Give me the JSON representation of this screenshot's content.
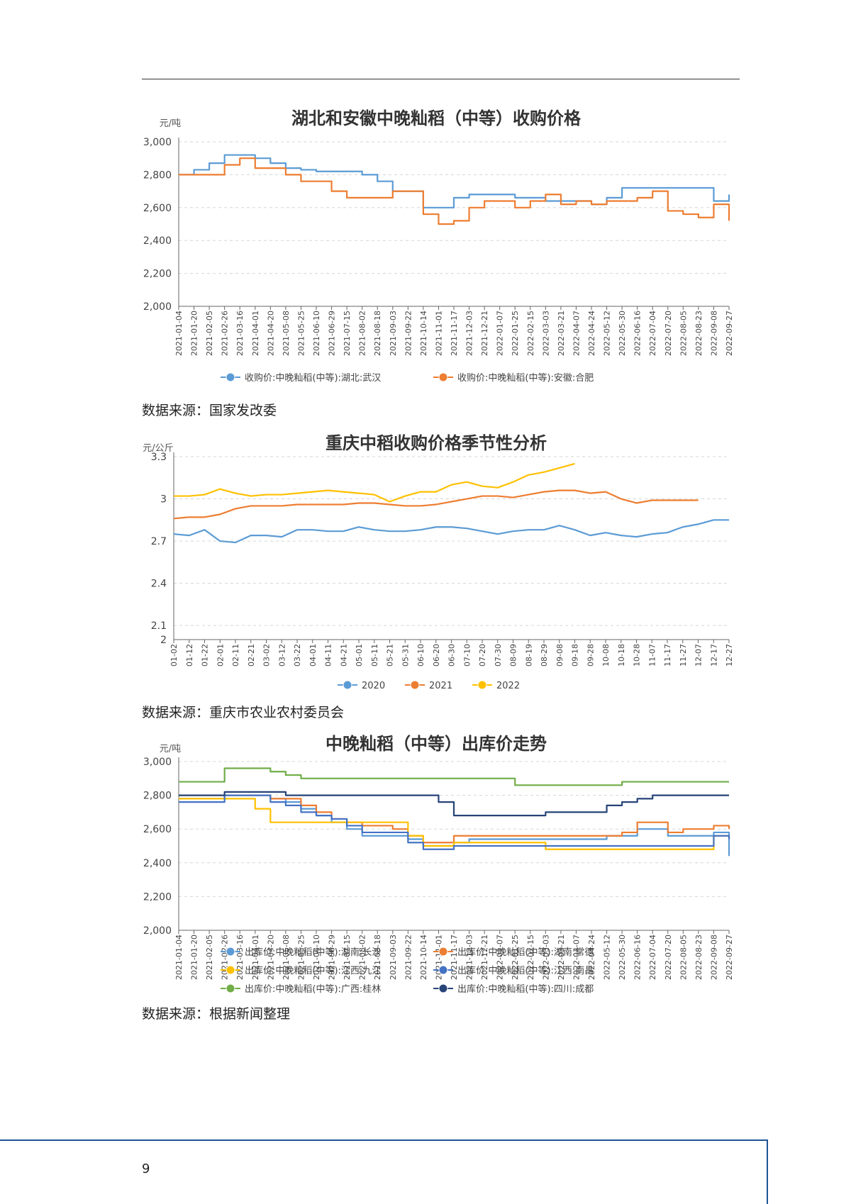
{
  "page_number": "9",
  "sources": [
    "数据来源：国家发改委",
    "数据来源：重庆市农业农村委员会",
    "数据来源：根据新闻整理"
  ],
  "chart_data": [
    {
      "type": "line",
      "title": "湖北和安徽中晚籼稻（中等）收购价格",
      "ylabel": "元/吨",
      "ylim": [
        2000,
        3000
      ],
      "yticks": [
        "3,000",
        "2,800",
        "2,600",
        "2,400",
        "2,200",
        "2,000"
      ],
      "ytick_values": [
        3000,
        2800,
        2600,
        2400,
        2200,
        2000
      ],
      "grid": true,
      "legend_position": "bottom",
      "x": [
        "2021-01-04",
        "2021-01-20",
        "2021-02-05",
        "2021-02-26",
        "2021-03-16",
        "2021-04-01",
        "2021-04-20",
        "2021-05-08",
        "2021-05-25",
        "2021-06-10",
        "2021-06-29",
        "2021-07-15",
        "2021-08-02",
        "2021-08-18",
        "2021-09-03",
        "2021-09-22",
        "2021-10-14",
        "2021-11-01",
        "2021-11-17",
        "2021-12-03",
        "2021-12-21",
        "2022-01-07",
        "2022-01-25",
        "2022-02-15",
        "2022-03-03",
        "2022-03-21",
        "2022-04-07",
        "2022-04-24",
        "2022-05-12",
        "2022-05-30",
        "2022-06-16",
        "2022-07-04",
        "2022-07-20",
        "2022-08-05",
        "2022-08-23",
        "2022-09-08",
        "2022-09-27"
      ],
      "series": [
        {
          "name": "收购价:中晚籼稻(中等):湖北:武汉",
          "color": "#5b9bd5",
          "values": [
            2800,
            2830,
            2870,
            2920,
            2920,
            2900,
            2870,
            2840,
            2830,
            2820,
            2820,
            2820,
            2800,
            2760,
            2700,
            2700,
            2600,
            2600,
            2660,
            2680,
            2680,
            2680,
            2660,
            2660,
            2640,
            2640,
            2640,
            2620,
            2660,
            2720,
            2720,
            2720,
            2720,
            2720,
            2720,
            2640,
            2680
          ]
        },
        {
          "name": "收购价:中晚籼稻(中等):安徽:合肥",
          "color": "#ed7d31",
          "values": [
            2800,
            2800,
            2800,
            2860,
            2900,
            2840,
            2840,
            2800,
            2760,
            2760,
            2700,
            2660,
            2660,
            2660,
            2700,
            2700,
            2560,
            2500,
            2520,
            2600,
            2640,
            2640,
            2600,
            2640,
            2680,
            2620,
            2640,
            2620,
            2640,
            2640,
            2660,
            2700,
            2580,
            2560,
            2540,
            2620,
            2520
          ]
        }
      ]
    },
    {
      "type": "line",
      "title": "重庆中稻收购价格季节性分析",
      "ylabel": "元/公斤",
      "ylim": [
        2,
        3.3
      ],
      "yticks": [
        "3.3",
        "3",
        "2.7",
        "2.4",
        "2.1",
        "2"
      ],
      "ytick_values": [
        3.3,
        3.0,
        2.7,
        2.4,
        2.1,
        2.0
      ],
      "grid": true,
      "legend_position": "bottom",
      "x": [
        "01-02",
        "01-12",
        "01-22",
        "02-01",
        "02-11",
        "02-21",
        "03-02",
        "03-12",
        "03-22",
        "04-01",
        "04-11",
        "04-21",
        "05-01",
        "05-11",
        "05-21",
        "05-31",
        "06-10",
        "06-20",
        "06-30",
        "07-10",
        "07-20",
        "07-30",
        "08-09",
        "08-19",
        "08-29",
        "09-08",
        "09-18",
        "09-28",
        "10-08",
        "10-18",
        "10-28",
        "11-07",
        "11-17",
        "11-27",
        "12-07",
        "12-17",
        "12-27"
      ],
      "series": [
        {
          "name": "2020",
          "color": "#5b9bd5",
          "values": [
            2.75,
            2.74,
            2.78,
            2.7,
            2.69,
            2.74,
            2.74,
            2.73,
            2.78,
            2.78,
            2.77,
            2.77,
            2.8,
            2.78,
            2.77,
            2.77,
            2.78,
            2.8,
            2.8,
            2.79,
            2.77,
            2.75,
            2.77,
            2.78,
            2.78,
            2.81,
            2.78,
            2.74,
            2.76,
            2.74,
            2.73,
            2.75,
            2.76,
            2.8,
            2.82,
            2.85,
            2.85
          ]
        },
        {
          "name": "2021",
          "color": "#ed7d31",
          "values": [
            2.86,
            2.87,
            2.87,
            2.89,
            2.93,
            2.95,
            2.95,
            2.95,
            2.96,
            2.96,
            2.96,
            2.96,
            2.97,
            2.97,
            2.96,
            2.95,
            2.95,
            2.96,
            2.98,
            3.0,
            3.02,
            3.02,
            3.01,
            3.03,
            3.05,
            3.06,
            3.06,
            3.04,
            3.05,
            3.0,
            2.97,
            2.99,
            2.99,
            2.99,
            2.99,
            null,
            null
          ]
        },
        {
          "name": "2022",
          "color": "#ffc000",
          "values": [
            3.02,
            3.02,
            3.03,
            3.07,
            3.04,
            3.02,
            3.03,
            3.03,
            3.04,
            3.05,
            3.06,
            3.05,
            3.04,
            3.03,
            2.98,
            3.02,
            3.05,
            3.05,
            3.1,
            3.12,
            3.09,
            3.08,
            3.12,
            3.17,
            3.19,
            3.22,
            3.25,
            null,
            null,
            null,
            null,
            null,
            null,
            null,
            null,
            null,
            null
          ]
        }
      ]
    },
    {
      "type": "line",
      "title": "中晚籼稻（中等）出库价走势",
      "ylabel": "元/吨",
      "ylim": [
        2000,
        3000
      ],
      "yticks": [
        "3,000",
        "2,800",
        "2,600",
        "2,400",
        "2,200",
        "2,000"
      ],
      "ytick_values": [
        3000,
        2800,
        2600,
        2400,
        2200,
        2000
      ],
      "grid": true,
      "legend_position": "bottom",
      "x": [
        "2021-01-04",
        "2021-01-20",
        "2021-02-05",
        "2021-02-26",
        "2021-03-16",
        "2021-04-01",
        "2021-04-20",
        "2021-05-08",
        "2021-05-25",
        "2021-06-10",
        "2021-06-29",
        "2021-07-15",
        "2021-08-02",
        "2021-08-18",
        "2021-09-03",
        "2021-09-22",
        "2021-10-14",
        "2021-11-01",
        "2021-11-17",
        "2021-12-03",
        "2021-12-21",
        "2022-01-07",
        "2022-01-25",
        "2022-02-15",
        "2022-03-03",
        "2022-03-21",
        "2022-04-07",
        "2022-04-24",
        "2022-05-12",
        "2022-05-30",
        "2022-06-16",
        "2022-07-04",
        "2022-07-20",
        "2022-08-05",
        "2022-08-23",
        "2022-09-08",
        "2022-09-27"
      ],
      "series": [
        {
          "name": "出库价:中晚籼稻(中等):湖南:长沙",
          "color": "#5b9bd5",
          "values": [
            2780,
            2780,
            2780,
            2800,
            2800,
            2800,
            2780,
            2760,
            2720,
            2680,
            2640,
            2600,
            2560,
            2560,
            2560,
            2540,
            2500,
            2500,
            2520,
            2540,
            2540,
            2540,
            2540,
            2540,
            2540,
            2540,
            2540,
            2540,
            2560,
            2560,
            2600,
            2600,
            2560,
            2560,
            2560,
            2580,
            2440
          ]
        },
        {
          "name": "出库价:中晚籼稻(中等):湖南:常德",
          "color": "#ed7d31",
          "values": [
            2800,
            2800,
            2800,
            2800,
            2800,
            2800,
            2780,
            2780,
            2740,
            2700,
            2660,
            2640,
            2620,
            2620,
            2600,
            2560,
            2520,
            2520,
            2560,
            2560,
            2560,
            2560,
            2560,
            2560,
            2560,
            2560,
            2560,
            2560,
            2560,
            2580,
            2640,
            2640,
            2580,
            2600,
            2600,
            2620,
            2600
          ]
        },
        {
          "name": "出库价:中晚籼稻(中等):江西:九江",
          "color": "#ffc000",
          "values": [
            2780,
            2780,
            2780,
            2780,
            2780,
            2720,
            2640,
            2640,
            2640,
            2640,
            2640,
            2640,
            2640,
            2640,
            2640,
            2560,
            2500,
            2500,
            2520,
            2520,
            2520,
            2520,
            2520,
            2520,
            2480,
            2480,
            2480,
            2480,
            2480,
            2480,
            2480,
            2480,
            2480,
            2480,
            2480,
            2560,
            2560
          ]
        },
        {
          "name": "出库价:中晚籼稻(中等):江西:南昌",
          "color": "#4472c4",
          "values": [
            2760,
            2760,
            2760,
            2800,
            2800,
            2800,
            2760,
            2740,
            2700,
            2680,
            2660,
            2620,
            2580,
            2580,
            2580,
            2520,
            2480,
            2480,
            2500,
            2500,
            2500,
            2500,
            2500,
            2500,
            2500,
            2500,
            2500,
            2500,
            2500,
            2500,
            2500,
            2500,
            2500,
            2500,
            2500,
            2560,
            2540
          ]
        },
        {
          "name": "出库价:中晚籼稻(中等):广西:桂林",
          "color": "#70ad47",
          "values": [
            2880,
            2880,
            2880,
            2960,
            2960,
            2960,
            2940,
            2920,
            2900,
            2900,
            2900,
            2900,
            2900,
            2900,
            2900,
            2900,
            2900,
            2900,
            2900,
            2900,
            2900,
            2900,
            2860,
            2860,
            2860,
            2860,
            2860,
            2860,
            2860,
            2880,
            2880,
            2880,
            2880,
            2880,
            2880,
            2880,
            2880
          ]
        },
        {
          "name": "出库价:中晚籼稻(中等):四川:成都",
          "color": "#264478",
          "values": [
            2800,
            2800,
            2800,
            2820,
            2820,
            2820,
            2820,
            2800,
            2800,
            2800,
            2800,
            2800,
            2800,
            2800,
            2800,
            2800,
            2800,
            2760,
            2680,
            2680,
            2680,
            2680,
            2680,
            2680,
            2700,
            2700,
            2700,
            2700,
            2740,
            2760,
            2780,
            2800,
            2800,
            2800,
            2800,
            2800,
            2800
          ]
        }
      ]
    }
  ]
}
